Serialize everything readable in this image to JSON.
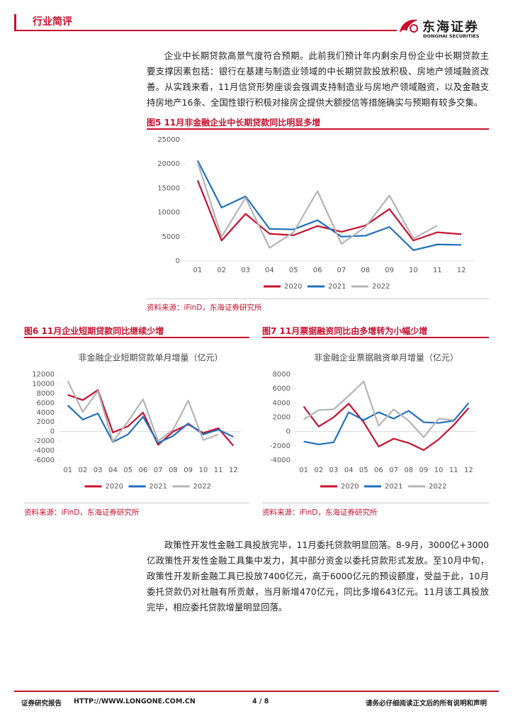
{
  "header": {
    "section": "行业简评",
    "logo_cn": "东海证券",
    "logo_en": "DONGHAI SECURITIES"
  },
  "paragraphs": [
    "企业中长期贷款高景气度符合预期。此前我们预计年内剩余月份企业中长期贷款主要支撑因素包括：银行在基建与制造业领域的中长期贷款投放积极、房地产领域融资改善。从实践来看，11月信贷形势座谈会强调支持制造业与房地产领域融资，以及金融支持房地产16条、全国性银行积极对接房企提供大额授信等措施确实与预期有较多交集。",
    "政策性开发性金融工具投放完毕，11月委托贷款明显回落。8-9月，3000亿+3000亿政策性开发性金融工具集中发力，其中部分资金以委托贷款形式发放。至10月中旬，政策性开发新金融工具已投放7400亿元，高于6000亿元的预设额度，受益于此，10月委托贷款仍对社融有所贡献，当月新增470亿元，同比多增643亿元。11月该工具投放完毕，相应委托贷款增量明显回落。"
  ],
  "chart_data": [
    {
      "type": "line",
      "caption": "图5  11月非金融企业中长期贷款同比明显多增",
      "source": "资料来源：iFinD，东海证券研究所",
      "categories": [
        "01",
        "02",
        "03",
        "04",
        "05",
        "06",
        "07",
        "08",
        "09",
        "10",
        "11",
        "12"
      ],
      "series": [
        {
          "name": "2020",
          "color": "#c8102e",
          "values": [
            16600,
            4200,
            9700,
            5600,
            5300,
            7200,
            6000,
            7300,
            10700,
            4200,
            5900,
            5500
          ]
        },
        {
          "name": "2021",
          "color": "#1f6fbf",
          "values": [
            20700,
            11000,
            13300,
            6600,
            6500,
            8400,
            5000,
            5200,
            7000,
            2200,
            3400,
            3300
          ]
        },
        {
          "name": "2022",
          "color": "#b4b4b4",
          "values": [
            20300,
            5000,
            13000,
            2700,
            5900,
            14400,
            3500,
            7000,
            13500,
            4600,
            7300,
            null
          ]
        }
      ],
      "ylim": [
        0,
        25000
      ],
      "yticks": [
        0,
        5000,
        10000,
        15000,
        20000,
        25000
      ],
      "grid": false,
      "legend": "bottom"
    },
    {
      "type": "line",
      "caption": "图6  11月企业短期贷款同比继续少增",
      "title": "非金融企业短期贷款单月增量（亿元）",
      "source": "资料来源：iFinD，东海证券研究所",
      "categories": [
        "01",
        "02",
        "03",
        "04",
        "05",
        "06",
        "07",
        "08",
        "09",
        "10",
        "11",
        "12"
      ],
      "series": [
        {
          "name": "2020",
          "color": "#c8102e",
          "values": [
            7700,
            6600,
            8700,
            -200,
            1100,
            4000,
            -2800,
            0,
            1500,
            -300,
            700,
            -3000
          ]
        },
        {
          "name": "2021",
          "color": "#1f6fbf",
          "values": [
            5500,
            2500,
            3800,
            -2200,
            -600,
            3100,
            -2400,
            -900,
            1700,
            -600,
            400,
            -1100
          ]
        },
        {
          "name": "2022",
          "color": "#b4b4b4",
          "values": [
            10600,
            4100,
            8500,
            -2100,
            2100,
            6800,
            -2000,
            400,
            6500,
            -1800,
            -600,
            null
          ]
        }
      ],
      "ylim": [
        -6000,
        12000
      ],
      "yticks": [
        -6000,
        -4000,
        -2000,
        0,
        2000,
        4000,
        6000,
        8000,
        10000,
        12000
      ],
      "grid": false,
      "legend": "bottom"
    },
    {
      "type": "line",
      "caption": "图7  11月票据融资同比由多增转为小幅少增",
      "title": "非金融企业票据融资单月增量（亿元）",
      "source": "资料来源：iFinD，东海证券研究所",
      "categories": [
        "01",
        "02",
        "03",
        "04",
        "05",
        "06",
        "07",
        "08",
        "09",
        "10",
        "11",
        "12"
      ],
      "series": [
        {
          "name": "2020",
          "color": "#c8102e",
          "values": [
            3500,
            700,
            2000,
            3900,
            1300,
            -2100,
            -1000,
            -1600,
            -2600,
            -1100,
            900,
            3300
          ]
        },
        {
          "name": "2021",
          "color": "#1f6fbf",
          "values": [
            -1400,
            -1800,
            -1500,
            2700,
            1600,
            2700,
            1800,
            2900,
            1300,
            1200,
            1500,
            4000
          ]
        },
        {
          "name": "2022",
          "color": "#b4b4b4",
          "values": [
            1700,
            3000,
            3100,
            5000,
            7000,
            800,
            3100,
            1500,
            -800,
            1800,
            1600,
            null
          ]
        }
      ],
      "ylim": [
        -4000,
        8000
      ],
      "yticks": [
        -4000,
        -2000,
        0,
        2000,
        4000,
        6000,
        8000
      ],
      "grid": false,
      "legend": "bottom"
    }
  ],
  "footer": {
    "left": "证券研究报告",
    "url": "HTTP://WWW.LONGONE.COM.CN",
    "page": "4 / 8",
    "right": "请务必仔细阅读正文后的所有说明和声明"
  }
}
